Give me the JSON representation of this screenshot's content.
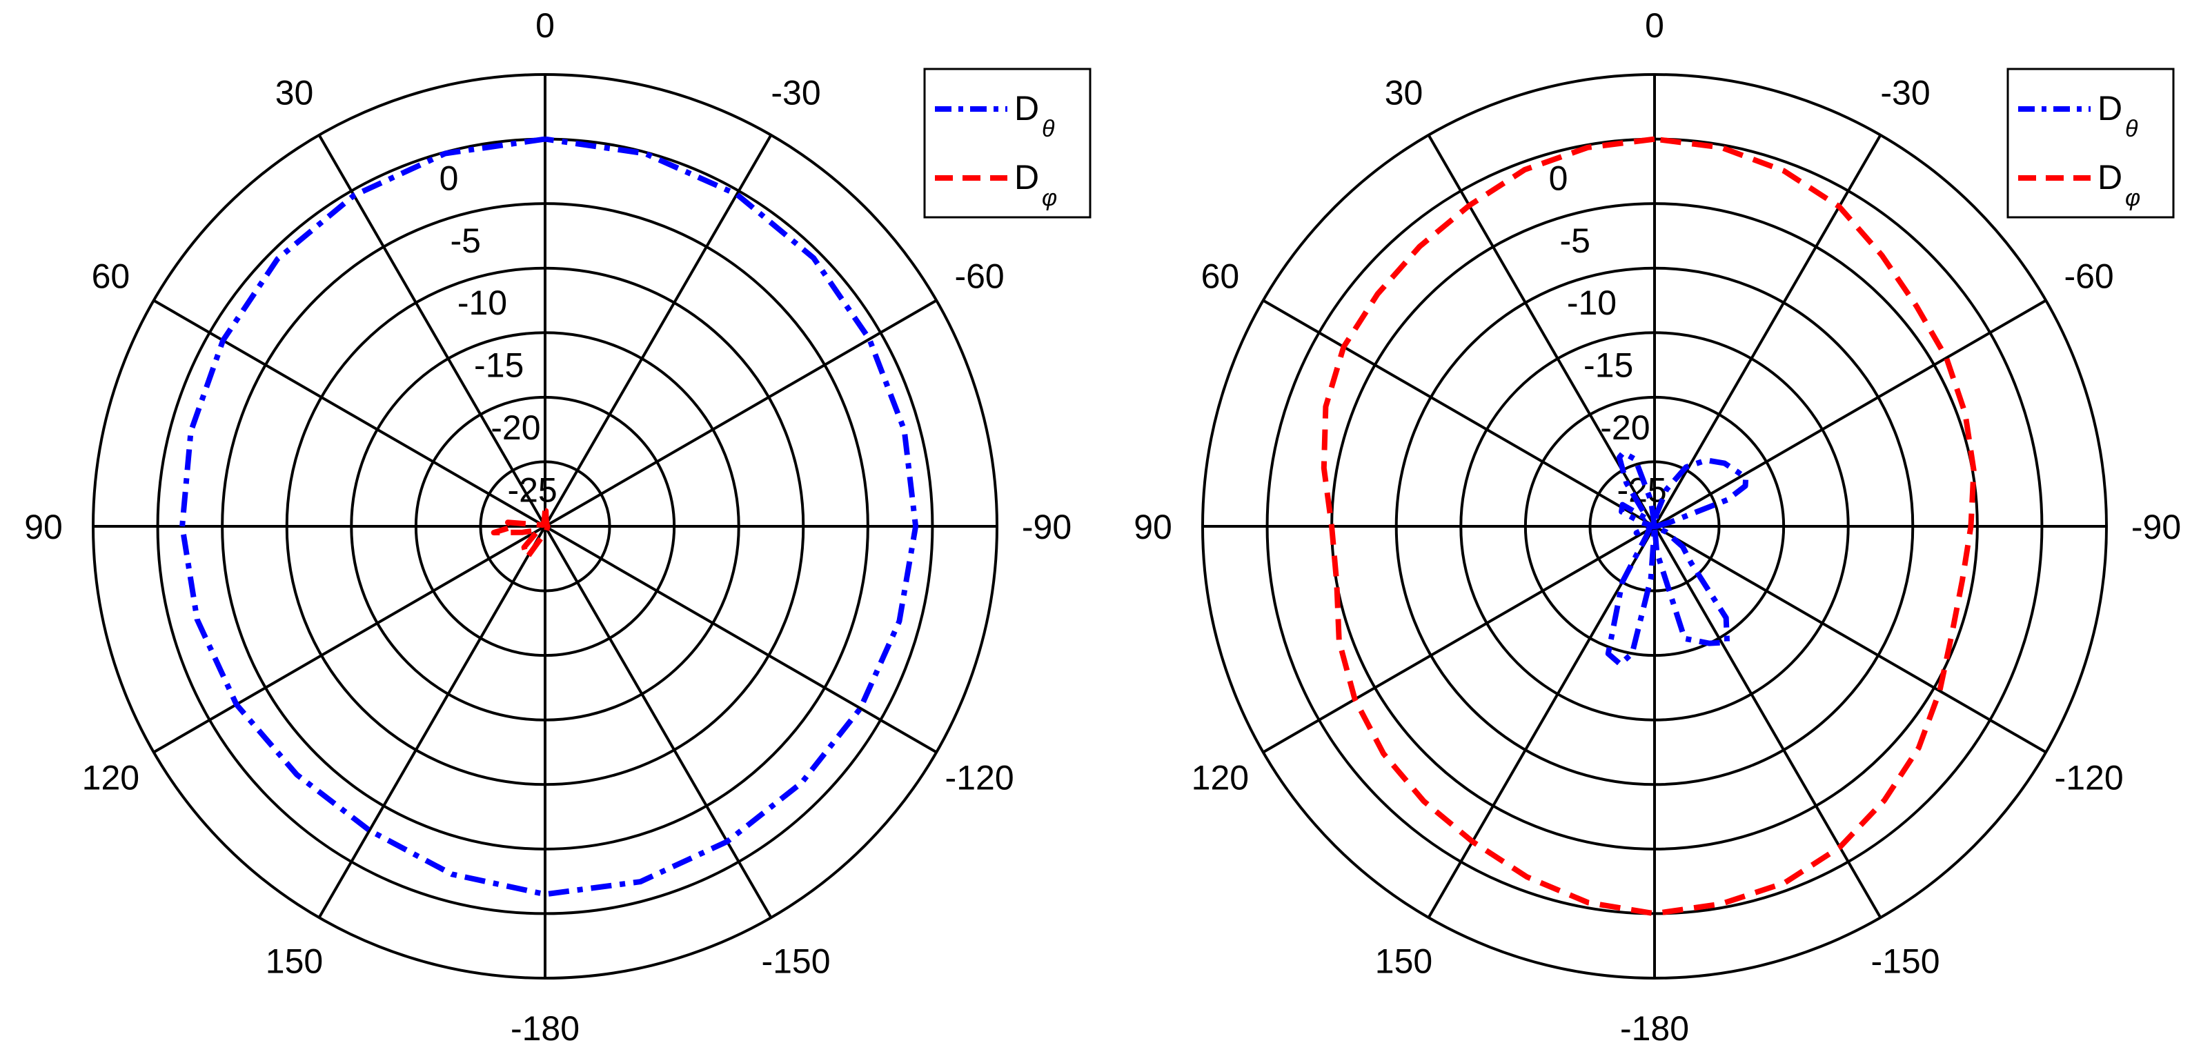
{
  "chart_data": [
    {
      "type": "polar",
      "angle_direction": "counterclockwise",
      "zero_location": "top",
      "angle_ticks": [
        0,
        30,
        60,
        90,
        120,
        150,
        -180,
        -150,
        -120,
        -90,
        -60,
        -30
      ],
      "angle_tick_labels": [
        "0",
        "30",
        "60",
        "90",
        "120",
        "150",
        "-180",
        "-150",
        "-120",
        "-90",
        "-60",
        "-30"
      ],
      "r_range": [
        -30,
        5
      ],
      "r_ticks": [
        0,
        -5,
        -10,
        -15,
        -20,
        -25
      ],
      "r_tick_labels": [
        "0",
        "-5",
        "-10",
        "-15",
        "-20",
        "-25"
      ],
      "legend_position": "top-right",
      "series": [
        {
          "name": "D",
          "subscript": "θ",
          "color": "#0000ff",
          "style": "dash-dot",
          "points": [
            [
              0,
              0
            ],
            [
              15,
              -0.1
            ],
            [
              30,
              -0.4
            ],
            [
              45,
              -0.7
            ],
            [
              60,
              -1.2
            ],
            [
              75,
              -1.6
            ],
            [
              90,
              -1.9
            ],
            [
              105,
              -2.1
            ],
            [
              120,
              -2.4
            ],
            [
              135,
              -2.8
            ],
            [
              150,
              -2.8
            ],
            [
              165,
              -2.1
            ],
            [
              180,
              -1.5
            ],
            [
              -165,
              -1.5
            ],
            [
              -150,
              -1.8
            ],
            [
              -135,
              -1.9
            ],
            [
              -120,
              -1.8
            ],
            [
              -105,
              -1.6
            ],
            [
              -90,
              -1.3
            ],
            [
              -75,
              -1.2
            ],
            [
              -60,
              -1.0
            ],
            [
              -45,
              -0.6
            ],
            [
              -30,
              -0.3
            ],
            [
              -15,
              -0.1
            ],
            [
              0,
              0
            ]
          ]
        },
        {
          "name": "D",
          "subscript": "φ",
          "color": "#ff0000",
          "style": "dashed",
          "points": [
            [
              0,
              -28.8
            ],
            [
              10,
              -29.6
            ],
            [
              60,
              -29.8
            ],
            [
              84,
              -27.1
            ],
            [
              90,
              -27.6
            ],
            [
              97,
              -26.0
            ],
            [
              105,
              -28.2
            ],
            [
              120,
              -29.4
            ],
            [
              135,
              -27.7
            ],
            [
              150,
              -27.2
            ],
            [
              165,
              -29.2
            ],
            [
              180,
              -29.3
            ],
            [
              -90,
              -29.8
            ],
            [
              -45,
              -29.8
            ],
            [
              -10,
              -29.5
            ],
            [
              -3,
              -28.8
            ],
            [
              0,
              -28.8
            ]
          ]
        }
      ]
    },
    {
      "type": "polar",
      "angle_direction": "counterclockwise",
      "zero_location": "top",
      "angle_ticks": [
        0,
        30,
        60,
        90,
        120,
        150,
        -180,
        -150,
        -120,
        -90,
        -60,
        -30
      ],
      "angle_tick_labels": [
        "0",
        "30",
        "60",
        "90",
        "120",
        "150",
        "-180",
        "-150",
        "-120",
        "-90",
        "-60",
        "-30"
      ],
      "r_range": [
        -30,
        5
      ],
      "r_ticks": [
        0,
        -5,
        -10,
        -15,
        -20,
        -25
      ],
      "r_tick_labels": [
        "0",
        "-5",
        "-10",
        "-15",
        "-20",
        "-25"
      ],
      "legend_position": "top-right",
      "series": [
        {
          "name": "D",
          "subscript": "θ",
          "color": "#0000ff",
          "style": "dash-dot",
          "points": [
            [
              0,
              -30
            ],
            [
              8,
              -28
            ],
            [
              16,
              -24.6
            ],
            [
              23,
              -23.8
            ],
            [
              27,
              -24
            ],
            [
              33,
              -26
            ],
            [
              40,
              -29
            ],
            [
              48,
              -29
            ],
            [
              56,
              -27
            ],
            [
              66,
              -27.2
            ],
            [
              74,
              -29
            ],
            [
              85,
              -30
            ],
            [
              95,
              -29.6
            ],
            [
              110,
              -28.5
            ],
            [
              122,
              -29.5
            ],
            [
              140,
              -29
            ],
            [
              150,
              -25
            ],
            [
              160,
              -19.5
            ],
            [
              166,
              -19
            ],
            [
              170,
              -20
            ],
            [
              176,
              -26
            ],
            [
              180,
              -30
            ],
            [
              -175,
              -28
            ],
            [
              -165,
              -21
            ],
            [
              -155,
              -20
            ],
            [
              -148,
              -19.4
            ],
            [
              -142,
              -21
            ],
            [
              -135,
              -26
            ],
            [
              -126,
              -27.3
            ],
            [
              -116,
              -29
            ],
            [
              -105,
              -30
            ],
            [
              -97,
              -30
            ],
            [
              -85,
              -29.8
            ],
            [
              -75,
              -28.7
            ],
            [
              -70,
              -24
            ],
            [
              -66,
              -22.3
            ],
            [
              -62,
              -22
            ],
            [
              -57,
              -22.3
            ],
            [
              -48,
              -22.7
            ],
            [
              -38,
              -23.5
            ],
            [
              -28,
              -24.8
            ],
            [
              -18,
              -27
            ],
            [
              -10,
              -29
            ],
            [
              0,
              -30
            ]
          ]
        },
        {
          "name": "D",
          "subscript": "φ",
          "color": "#ff0000",
          "style": "dashed",
          "points": [
            [
              0,
              0
            ],
            [
              10,
              -0.2
            ],
            [
              20,
              -0.6
            ],
            [
              30,
              -1.3
            ],
            [
              40,
              -1.7
            ],
            [
              50,
              -2.0
            ],
            [
              60,
              -2.2
            ],
            [
              70,
              -2.9
            ],
            [
              80,
              -4.0
            ],
            [
              90,
              -5.0
            ],
            [
              100,
              -5.0
            ],
            [
              110,
              -4.0
            ],
            [
              120,
              -3.2
            ],
            [
              130,
              -2.6
            ],
            [
              140,
              -2.2
            ],
            [
              150,
              -1.8
            ],
            [
              160,
              -1.1
            ],
            [
              170,
              -0.4
            ],
            [
              180,
              0
            ],
            [
              -170,
              -0.3
            ],
            [
              -160,
              -0.6
            ],
            [
              -150,
              -1.3
            ],
            [
              -140,
              -2.3
            ],
            [
              -130,
              -3.3
            ],
            [
              -120,
              -4.5
            ],
            [
              -110,
              -5.5
            ],
            [
              -100,
              -5.8
            ],
            [
              -90,
              -5.5
            ],
            [
              -80,
              -4.9
            ],
            [
              -70,
              -4.4
            ],
            [
              -60,
              -3.9
            ],
            [
              -50,
              -3.5
            ],
            [
              -40,
              -2.6
            ],
            [
              -30,
              -1.4
            ],
            [
              -20,
              -0.7
            ],
            [
              -10,
              -0.2
            ],
            [
              0,
              0
            ]
          ]
        }
      ]
    }
  ]
}
